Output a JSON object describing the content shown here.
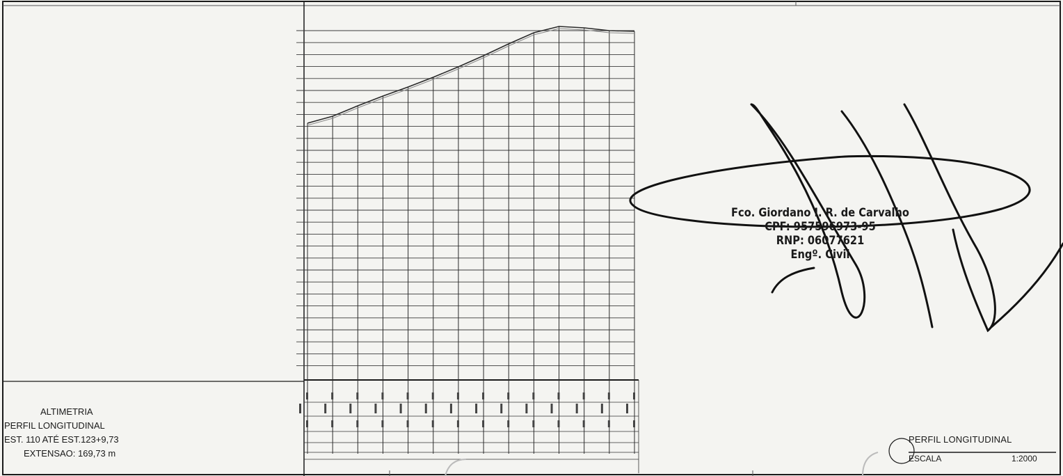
{
  "title_block": {
    "line1": "ALTIMETRIA",
    "line2": "PERFIL LONGITUDINAL",
    "line3": "EST. 110 ATÉ EST.123+9,73",
    "line4": "EXTENSAO: 169,73 m"
  },
  "stamp": {
    "title": "PERFIL LONGITUDINAL",
    "scale_label": "ESCALA",
    "scale_value": "1:2000"
  },
  "signature_block": {
    "name": "Fco. Giordano I. R. de Carvalho",
    "cpf": "CPF: 957596973-95",
    "rnp": "RNP: 06077621",
    "role": "Engº. Civil"
  },
  "colors": {
    "ink": "#1a1a1a",
    "paper": "#f4f4f1"
  },
  "chart_data": {
    "type": "line",
    "title": "",
    "xlabel": "",
    "ylabel": "",
    "x": [
      0,
      1,
      2,
      3,
      4,
      5,
      6,
      7,
      8,
      9,
      10,
      11,
      12,
      13
    ],
    "series": [
      {
        "values": [
          177,
          167,
          152,
          138,
          125,
          111,
          96,
          80,
          63,
          47,
          38,
          40,
          44,
          45
        ]
      }
    ],
    "note_shape_only": true
  }
}
